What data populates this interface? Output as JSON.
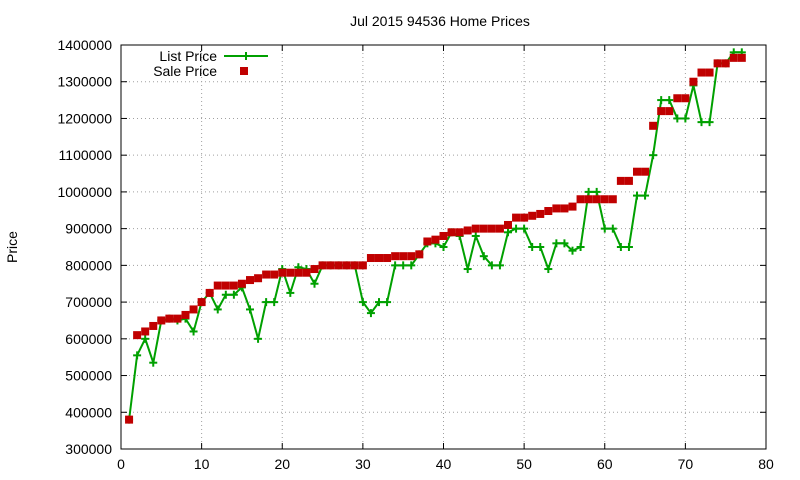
{
  "chart_data": {
    "type": "line",
    "title": "Jul 2015 94536 Home Prices",
    "xlabel": "",
    "ylabel": "Price",
    "xlim": [
      0,
      80
    ],
    "ylim": [
      300000,
      1400000
    ],
    "xticks": [
      0,
      10,
      20,
      30,
      40,
      50,
      60,
      70,
      80
    ],
    "yticks": [
      300000,
      400000,
      500000,
      600000,
      700000,
      800000,
      900000,
      1000000,
      1100000,
      1200000,
      1300000,
      1400000
    ],
    "xtick_labels": [
      "0",
      "10",
      "20",
      "30",
      "40",
      "50",
      "60",
      "70",
      "80"
    ],
    "ytick_labels": [
      "300000",
      "400000",
      "500000",
      "600000",
      "700000",
      "800000",
      "900000",
      "1000000",
      "1100000",
      "1200000",
      "1300000",
      "1400000"
    ],
    "grid": true,
    "legend_position": "top-left",
    "x": [
      1,
      2,
      3,
      4,
      5,
      6,
      7,
      8,
      9,
      10,
      11,
      12,
      13,
      14,
      15,
      16,
      17,
      18,
      19,
      20,
      21,
      22,
      23,
      24,
      25,
      26,
      27,
      28,
      29,
      30,
      31,
      32,
      33,
      34,
      35,
      36,
      37,
      38,
      39,
      40,
      41,
      42,
      43,
      44,
      45,
      46,
      47,
      48,
      49,
      50,
      51,
      52,
      53,
      54,
      55,
      56,
      57,
      58,
      59,
      60,
      61,
      62,
      63,
      64,
      65,
      66,
      67,
      68,
      69,
      70,
      71,
      72,
      73,
      74,
      75,
      76,
      77
    ],
    "series": [
      {
        "name": "List Price",
        "style": "line-with-plus",
        "color": "#00a000",
        "values": [
          380000,
          555000,
          600000,
          535000,
          650000,
          655000,
          650000,
          655000,
          620000,
          700000,
          725000,
          680000,
          720000,
          720000,
          740000,
          680000,
          600000,
          700000,
          700000,
          790000,
          725000,
          795000,
          790000,
          750000,
          800000,
          800000,
          800000,
          800000,
          800000,
          700000,
          670000,
          700000,
          700000,
          800000,
          800000,
          800000,
          830000,
          860000,
          860000,
          850000,
          890000,
          880000,
          790000,
          880000,
          825000,
          800000,
          800000,
          890000,
          900000,
          900000,
          850000,
          850000,
          790000,
          860000,
          860000,
          840000,
          850000,
          1000000,
          1000000,
          900000,
          900000,
          850000,
          850000,
          990000,
          990000,
          1100000,
          1250000,
          1250000,
          1200000,
          1200000,
          1290000,
          1190000,
          1190000,
          1350000,
          1350000,
          1380000,
          1380000
        ]
      },
      {
        "name": "Sale Price",
        "style": "square-markers",
        "color": "#c00000",
        "values": [
          380000,
          610000,
          620000,
          635000,
          650000,
          655000,
          655000,
          665000,
          680000,
          700000,
          725000,
          745000,
          745000,
          745000,
          750000,
          760000,
          765000,
          775000,
          775000,
          780000,
          780000,
          780000,
          780000,
          790000,
          800000,
          800000,
          800000,
          800000,
          800000,
          800000,
          820000,
          820000,
          820000,
          825000,
          825000,
          825000,
          830000,
          865000,
          870000,
          880000,
          890000,
          890000,
          895000,
          900000,
          900000,
          900000,
          900000,
          910000,
          930000,
          930000,
          935000,
          940000,
          948000,
          955000,
          955000,
          960000,
          980000,
          980000,
          980000,
          980000,
          980000,
          1030000,
          1030000,
          1055000,
          1055000,
          1180000,
          1220000,
          1220000,
          1255000,
          1255000,
          1300000,
          1325000,
          1325000,
          1350000,
          1350000,
          1365000,
          1365000
        ]
      }
    ]
  }
}
